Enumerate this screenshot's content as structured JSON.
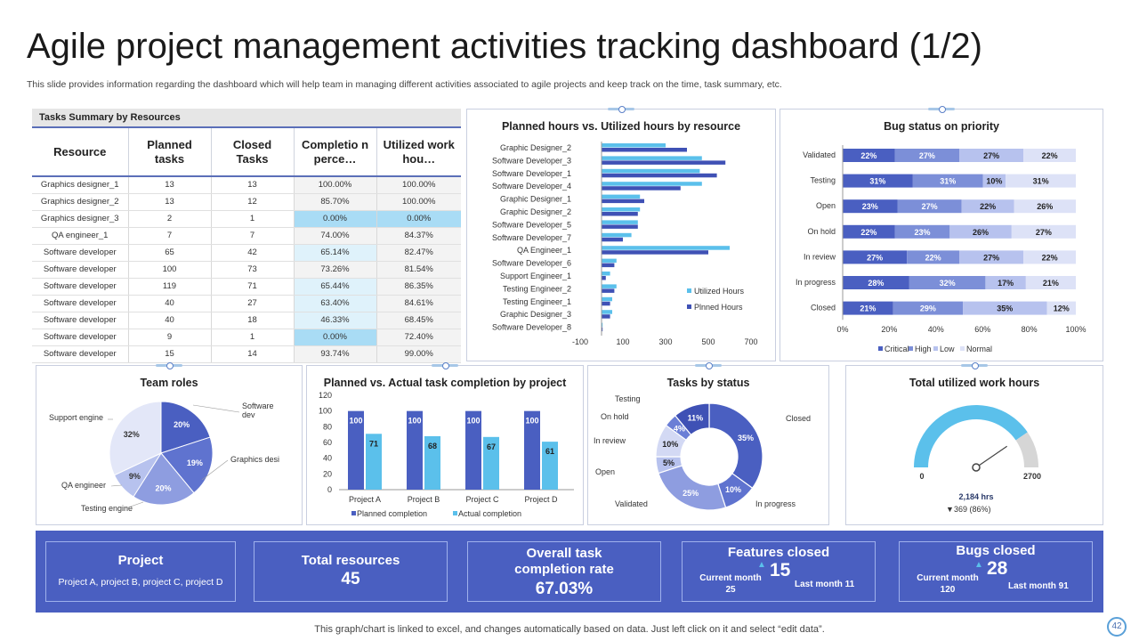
{
  "header": {
    "title": "Agile project management activities tracking dashboard (1/2)",
    "subtitle": "This slide provides information regarding the dashboard which will help team in managing different activities associated to agile projects and keep track on the time, task summary, etc."
  },
  "tasks_table": {
    "title": "Tasks Summary by Resources",
    "columns": [
      "Resource",
      "Planned tasks",
      "Closed Tasks",
      "Completio n perce…",
      "Utilized work hou…"
    ],
    "rows": [
      [
        "Graphics designer_1",
        "13",
        "13",
        "100.00%",
        "100.00%"
      ],
      [
        "Graphics designer_2",
        "13",
        "12",
        "85.70%",
        "100.00%"
      ],
      [
        "Graphics designer_3",
        "2",
        "1",
        "0.00%",
        "0.00%"
      ],
      [
        "QA engineer_1",
        "7",
        "7",
        "74.00%",
        "84.37%"
      ],
      [
        "Software developer",
        "65",
        "42",
        "65.14%",
        "82.47%"
      ],
      [
        "Software developer",
        "100",
        "73",
        "73.26%",
        "81.54%"
      ],
      [
        "Software developer",
        "119",
        "71",
        "65.44%",
        "86.35%"
      ],
      [
        "Software developer",
        "40",
        "27",
        "63.40%",
        "84.61%"
      ],
      [
        "Software developer",
        "40",
        "18",
        "46.33%",
        "68.45%"
      ],
      [
        "Software developer",
        "9",
        "1",
        "0.00%",
        "72.40%"
      ],
      [
        "Software developer",
        "15",
        "14",
        "93.74%",
        "99.00%"
      ]
    ]
  },
  "colors": {
    "primary": "#4a5fc1",
    "dark_blue": "#3f51b5",
    "light_blue": "#5bc0eb",
    "medium": "#7c8fd8",
    "pale": "#b7c2ee",
    "paler": "#dde2f7"
  },
  "chart_data": [
    {
      "type": "bar",
      "title": "Planned hours vs. Utilized hours by resource",
      "orientation": "horizontal",
      "categories": [
        "Graphic Designer_2",
        "Software Developer_3",
        "Software Developer_1",
        "Software Developer_4",
        "Graphic Designer_1",
        "Graphic Designer_2",
        "Software Developer_5",
        "Software Developer_7",
        "QA Engineer_1",
        "Software Developer_6",
        "Support Engineer_1",
        "Testing Engineer_2",
        "Testing Engineer_1",
        "Graphic Designer_3",
        "Software Developer_8"
      ],
      "series": [
        {
          "name": "Utilized Hours",
          "values": [
            300,
            470,
            460,
            470,
            180,
            180,
            170,
            140,
            600,
            70,
            40,
            70,
            50,
            50,
            5
          ]
        },
        {
          "name": "Plnned Hours",
          "values": [
            400,
            580,
            540,
            370,
            200,
            170,
            170,
            100,
            500,
            60,
            20,
            60,
            40,
            40,
            5
          ]
        }
      ],
      "xlim": [
        -100,
        700
      ],
      "xticks": [
        "-100",
        "100",
        "300",
        "500",
        "700"
      ],
      "legend": "right"
    },
    {
      "type": "bar",
      "title": "Bug status on priority",
      "orientation": "horizontal",
      "stacked": "percent",
      "categories": [
        "Validated",
        "Testing",
        "Open",
        "On hold",
        "In review",
        "In progress",
        "Closed"
      ],
      "series": [
        {
          "name": "Critical",
          "values": [
            22,
            31,
            23,
            22,
            27,
            28,
            21
          ]
        },
        {
          "name": "High",
          "values": [
            27,
            31,
            27,
            23,
            22,
            32,
            29
          ]
        },
        {
          "name": "Low",
          "values": [
            27,
            10,
            22,
            26,
            27,
            17,
            35
          ]
        },
        {
          "name": "Normal",
          "values": [
            22,
            31,
            26,
            27,
            22,
            21,
            12
          ]
        }
      ],
      "xticks": [
        "0%",
        "20%",
        "40%",
        "60%",
        "80%",
        "100%"
      ],
      "legend": "bottom"
    },
    {
      "type": "pie",
      "title": "Team roles",
      "labels": [
        "Software dev",
        "Graphics desi",
        "Testing engine",
        "QA engineer",
        "Support engine"
      ],
      "values": [
        20,
        19,
        20,
        9,
        32
      ],
      "value_labels": [
        "20%",
        "19%",
        "20%",
        "9%",
        "32%"
      ]
    },
    {
      "type": "bar",
      "title": "Planned vs. Actual task completion by project",
      "categories": [
        "Project A",
        "Project B",
        "Project C",
        "Project D"
      ],
      "series": [
        {
          "name": "Planned completion",
          "values": [
            100,
            100,
            100,
            100
          ]
        },
        {
          "name": "Actual completion",
          "values": [
            71,
            68,
            67,
            61
          ]
        }
      ],
      "ylim": [
        0,
        120
      ],
      "yticks": [
        "0",
        "20",
        "40",
        "60",
        "80",
        "100",
        "120"
      ],
      "legend": "bottom"
    },
    {
      "type": "pie",
      "title": "Tasks by status",
      "donut": true,
      "labels": [
        "Closed",
        "In progress",
        "Validated",
        "Open",
        "In review",
        "On hold",
        "Testing"
      ],
      "values": [
        35,
        10,
        25,
        5,
        10,
        4,
        11
      ],
      "value_labels": [
        "35%",
        "10%",
        "25%",
        "5%",
        "10%",
        "4%",
        "11%"
      ]
    },
    {
      "type": "gauge",
      "title": "Total utilized work hours",
      "min": 0,
      "max": 2700,
      "value": 2184,
      "min_label": "0",
      "max_label": "2700",
      "value_label": "2,184 hrs",
      "delta_label": "369 (86%)"
    }
  ],
  "kpis": {
    "project": {
      "title": "Project",
      "value": "Project A, project B, project C, project D"
    },
    "resources": {
      "title": "Total resources",
      "value": "45"
    },
    "completion": {
      "title": "Overall task completion rate",
      "value": "67.03%"
    },
    "features": {
      "title": "Features closed",
      "value": "15",
      "current_label": "Current month",
      "current_value": "25",
      "last": "Last month 11"
    },
    "bugs": {
      "title": "Bugs closed",
      "value": "28",
      "current_label": "Current month",
      "current_value": "120",
      "last": "Last month 91"
    }
  },
  "footer": {
    "note": "This graph/chart is linked to excel, and changes automatically based on data. Just left click on it and select “edit data”.",
    "page": "42"
  }
}
